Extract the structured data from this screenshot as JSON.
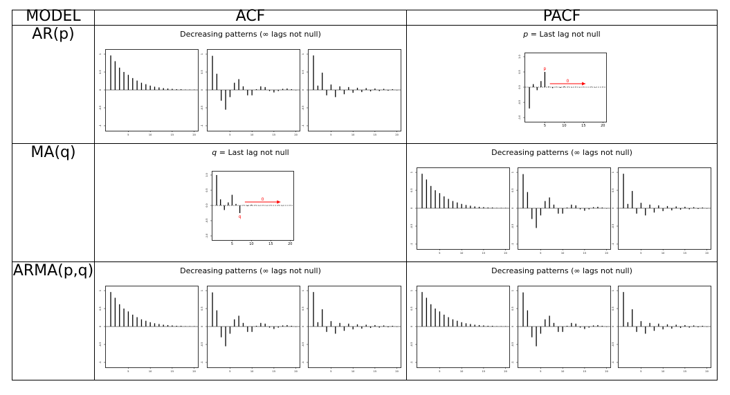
{
  "header": {
    "model": "MODEL",
    "acf": "ACF",
    "pacf": "PACF"
  },
  "rows": [
    {
      "label": "AR(p)",
      "acf_caption": "Decreasing patterns (∞ lags not null)",
      "pacf_caption_var": "p",
      "pacf_caption_rest": " = Last lag not null"
    },
    {
      "label": "MA(q)",
      "acf_caption_var": "q",
      "acf_caption_rest": " = Last lag not null",
      "pacf_caption": "Decreasing patterns (∞ lags not null)"
    },
    {
      "label": "ARMA(p,q)",
      "acf_caption": "Decreasing patterns (∞ lags not null)",
      "pacf_caption": "Decreasing patterns (∞ lags not null)"
    }
  ],
  "chart_data": {
    "type": "bar",
    "decreasing_patterns": [
      {
        "name": "",
        "values": [
          0.96,
          0.8,
          0.62,
          0.5,
          0.42,
          0.33,
          0.26,
          0.2,
          0.16,
          0.12,
          0.09,
          0.07,
          0.05,
          0.04,
          0.03,
          0.02,
          0.02,
          0.01,
          0.01,
          0.01
        ]
      },
      {
        "name": "",
        "values": [
          0.95,
          0.45,
          -0.3,
          -0.55,
          -0.2,
          0.2,
          0.3,
          0.1,
          -0.15,
          -0.15,
          0.02,
          0.1,
          0.08,
          -0.03,
          -0.07,
          -0.03,
          0.03,
          0.04,
          0.02,
          -0.01
        ]
      },
      {
        "name": "",
        "values": [
          0.96,
          0.12,
          0.48,
          -0.15,
          0.15,
          -0.2,
          0.1,
          -0.12,
          0.08,
          -0.08,
          0.06,
          -0.06,
          0.05,
          -0.04,
          0.04,
          -0.03,
          0.03,
          -0.02,
          0.02,
          -0.01
        ]
      }
    ],
    "cutoff_p": {
      "values": [
        -0.7,
        0.1,
        -0.1,
        0.2,
        0.5,
        0.02,
        -0.03,
        0.01,
        -0.02,
        0.02,
        0.01,
        -0.01,
        0.01,
        -0.01,
        0.01,
        0.0,
        0.01,
        -0.01,
        0.0,
        0.01
      ],
      "marker": "p",
      "zero_label": "0",
      "last_lag": 5
    },
    "cutoff_q": {
      "values": [
        1.0,
        0.2,
        -0.15,
        0.1,
        0.35,
        0.05,
        -0.25,
        0.01,
        -0.02,
        0.02,
        0.01,
        -0.01,
        0.01,
        -0.01,
        0.01,
        0.0,
        0.01,
        -0.01,
        0.0,
        0.01
      ],
      "marker": "q",
      "zero_label": "0",
      "last_lag": 7
    },
    "y_ticks_cutoff": [
      "-1.0",
      "-0.5",
      "0.0",
      "0.5",
      "1.0"
    ],
    "x_ticks_cutoff": [
      "5",
      "10",
      "15",
      "20"
    ],
    "y_ticks_pattern": [
      "1",
      "0.5",
      "0",
      "-0.5",
      "-1"
    ],
    "x_ticks_pattern": [
      "5",
      "10",
      "15",
      "20"
    ],
    "ylim": [
      -1,
      1
    ],
    "marker_color": "#ff0000"
  }
}
